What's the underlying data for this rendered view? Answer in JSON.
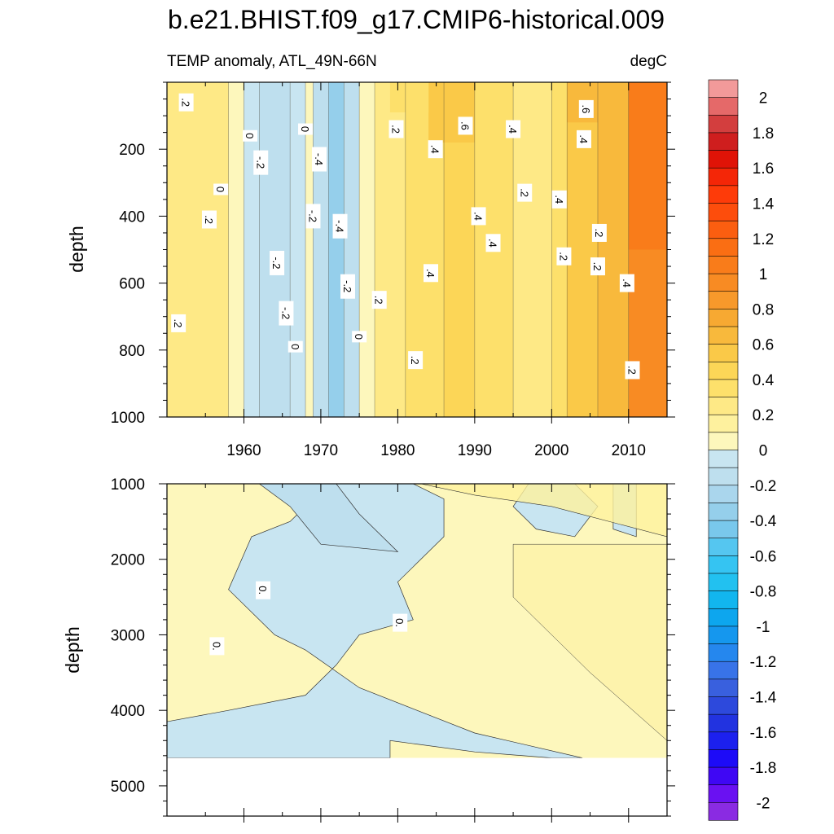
{
  "chart_data": {
    "type": "heatmap",
    "title": "b.e21.BHIST.f09_g17.CMIP6-historical.009",
    "subtitle_left": "TEMP anomaly, ATL_49N-66N",
    "subtitle_right": "degC",
    "ylabel": "depth",
    "xlim": [
      1950,
      2015
    ],
    "x_ticks": [
      "1960",
      "1970",
      "1980",
      "1990",
      "2000",
      "2010"
    ],
    "panels": [
      {
        "name": "upper",
        "ylim": [
          0,
          1000
        ],
        "y_ticks": [
          "200",
          "400",
          "600",
          "800",
          "1000"
        ],
        "columns": [
          {
            "x0": 1950,
            "x1": 1958,
            "value": 0.2
          },
          {
            "x0": 1958,
            "x1": 1960,
            "value": 0.05
          },
          {
            "x0": 1960,
            "x1": 1962,
            "value": -0.1
          },
          {
            "x0": 1962,
            "x1": 1966,
            "value": -0.2
          },
          {
            "x0": 1966,
            "x1": 1968,
            "value": -0.1
          },
          {
            "x0": 1968,
            "x1": 1969,
            "value": 0.05
          },
          {
            "x0": 1969,
            "x1": 1971,
            "value": -0.2
          },
          {
            "x0": 1971,
            "x1": 1973,
            "value": -0.4
          },
          {
            "x0": 1973,
            "x1": 1975,
            "value": -0.2
          },
          {
            "x0": 1975,
            "x1": 1977,
            "value": 0.05
          },
          {
            "x0": 1977,
            "x1": 1981,
            "value": 0.2
          },
          {
            "x0": 1981,
            "x1": 1986,
            "value": 0.35
          },
          {
            "x0": 1986,
            "x1": 1990,
            "value": 0.4
          },
          {
            "x0": 1990,
            "x1": 1995,
            "value": 0.3
          },
          {
            "x0": 1995,
            "x1": 2000,
            "value": 0.25
          },
          {
            "x0": 2000,
            "x1": 2002,
            "value": 0.3
          },
          {
            "x0": 2002,
            "x1": 2006,
            "value": 0.5
          },
          {
            "x0": 2006,
            "x1": 2010,
            "value": 0.6
          },
          {
            "x0": 2010,
            "x1": 2015,
            "value": 0.9
          }
        ],
        "contour_labels": [
          {
            "x": 1952.5,
            "y": 60,
            "text": ".2"
          },
          {
            "x": 1951.5,
            "y": 720,
            "text": ".2"
          },
          {
            "x": 1955.5,
            "y": 410,
            "text": ".2"
          },
          {
            "x": 1957.0,
            "y": 320,
            "text": "0"
          },
          {
            "x": 1960.8,
            "y": 160,
            "text": "0"
          },
          {
            "x": 1962.2,
            "y": 240,
            "text": "-.2"
          },
          {
            "x": 1964.3,
            "y": 540,
            "text": "-.2"
          },
          {
            "x": 1965.5,
            "y": 690,
            "text": "-.2"
          },
          {
            "x": 1966.7,
            "y": 790,
            "text": "0"
          },
          {
            "x": 1968.0,
            "y": 140,
            "text": "0"
          },
          {
            "x": 1969.8,
            "y": 230,
            "text": "-.4"
          },
          {
            "x": 1969.0,
            "y": 400,
            "text": "-.2"
          },
          {
            "x": 1972.5,
            "y": 430,
            "text": "-.4"
          },
          {
            "x": 1973.5,
            "y": 610,
            "text": "-.2"
          },
          {
            "x": 1975.0,
            "y": 760,
            "text": "0"
          },
          {
            "x": 1977.6,
            "y": 650,
            "text": ".2"
          },
          {
            "x": 1979.8,
            "y": 140,
            "text": ".2"
          },
          {
            "x": 1982.3,
            "y": 830,
            "text": ".2"
          },
          {
            "x": 1984.9,
            "y": 200,
            "text": ".4"
          },
          {
            "x": 1984.3,
            "y": 570,
            "text": ".4"
          },
          {
            "x": 1988.8,
            "y": 130,
            "text": ".6"
          },
          {
            "x": 1990.5,
            "y": 400,
            "text": ".4"
          },
          {
            "x": 1992.4,
            "y": 480,
            "text": ".4"
          },
          {
            "x": 1995.0,
            "y": 140,
            "text": ".4"
          },
          {
            "x": 1996.5,
            "y": 330,
            "text": ".2"
          },
          {
            "x": 2001.0,
            "y": 350,
            "text": ".4"
          },
          {
            "x": 2001.6,
            "y": 520,
            "text": ".2"
          },
          {
            "x": 2004.5,
            "y": 80,
            "text": ".6"
          },
          {
            "x": 2004.2,
            "y": 170,
            "text": ".4"
          },
          {
            "x": 2006.2,
            "y": 450,
            "text": ".2"
          },
          {
            "x": 2006.0,
            "y": 550,
            "text": ".2"
          },
          {
            "x": 2009.8,
            "y": 600,
            "text": ".4"
          },
          {
            "x": 2010.5,
            "y": 860,
            "text": ".2"
          }
        ]
      },
      {
        "name": "lower",
        "ylim": [
          1000,
          5400
        ],
        "y_ticks": [
          "1000",
          "2000",
          "3000",
          "4000",
          "5000"
        ],
        "bottom_depth": 4630,
        "contour_labels": [
          {
            "x": 1956.5,
            "y": 3150,
            "text": "0."
          },
          {
            "x": 1962.5,
            "y": 2410,
            "text": "0."
          },
          {
            "x": 1980.3,
            "y": 2840,
            "text": "0."
          }
        ]
      }
    ],
    "colorbar": {
      "levels": [
        -2.1,
        -2,
        -1.9,
        -1.8,
        -1.7,
        -1.6,
        -1.5,
        -1.4,
        -1.3,
        -1.2,
        -1.1,
        -1,
        -0.9,
        -0.8,
        -0.7,
        -0.6,
        -0.5,
        -0.4,
        -0.3,
        -0.2,
        -0.1,
        0,
        0.1,
        0.2,
        0.3,
        0.4,
        0.5,
        0.6,
        0.7,
        0.8,
        0.9,
        1,
        1.1,
        1.2,
        1.3,
        1.4,
        1.5,
        1.6,
        1.7,
        1.8,
        1.9,
        2,
        2.1
      ],
      "colors": [
        "#8a2be2",
        "#6a11f2",
        "#3f07f4",
        "#1d0bf7",
        "#1c20ee",
        "#2233e0",
        "#2d49dc",
        "#3960de",
        "#3873e8",
        "#2587ee",
        "#1597ee",
        "#0da6ee",
        "#12b6ef",
        "#22c1f0",
        "#35c4f2",
        "#55c6f0",
        "#79c8ec",
        "#95cfeb",
        "#aad6ed",
        "#bedfee",
        "#c8e5f1",
        "#fdf7bc",
        "#fef19e",
        "#fee986",
        "#fde06b",
        "#fcd657",
        "#fac948",
        "#f8b93c",
        "#f7a932",
        "#f7992b",
        "#f88b23",
        "#f97c1a",
        "#fa6e13",
        "#fb5e10",
        "#fd4d0c",
        "#fe3b09",
        "#f42607",
        "#e01307",
        "#cf1e1e",
        "#d33e3e",
        "#e56969",
        "#f29a9a"
      ],
      "labels": [
        "2",
        "1.8",
        "1.6",
        "1.4",
        "1.2",
        "1",
        "0.8",
        "0.6",
        "0.4",
        "0.2",
        "0",
        "-0.2",
        "-0.4",
        "-0.6",
        "-0.8",
        "-1",
        "-1.2",
        "-1.4",
        "-1.6",
        "-1.8",
        "-2"
      ]
    }
  }
}
